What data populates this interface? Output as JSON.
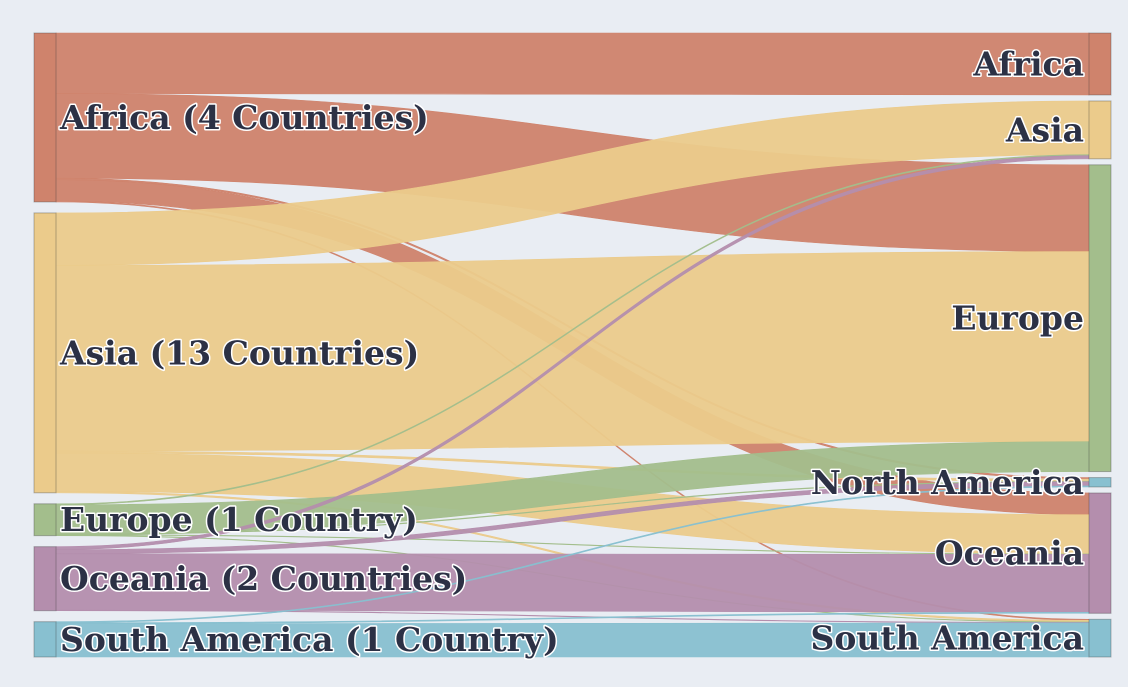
{
  "colors": {
    "background": "#e9edf3",
    "Africa": "#cf836c",
    "Asia": "#ebcb8b",
    "Europe": "#a3be8c",
    "Oceania": "#b48ead",
    "South America": "#88c0d0",
    "North America": "#88c0d0",
    "label_text": "#2c3145"
  },
  "chart_data": {
    "type": "sankey",
    "title": "",
    "sources": [
      {
        "id": "Africa",
        "label": "Africa (4 Countries)"
      },
      {
        "id": "Asia",
        "label": "Asia (13 Countries)"
      },
      {
        "id": "Europe",
        "label": "Europe (1 Country)"
      },
      {
        "id": "Oceania",
        "label": "Oceania (2 Countries)"
      },
      {
        "id": "South America",
        "label": "South America (1 Country)"
      }
    ],
    "targets": [
      {
        "id": "Africa",
        "label": "Africa"
      },
      {
        "id": "Asia",
        "label": "Asia"
      },
      {
        "id": "Europe",
        "label": "Europe"
      },
      {
        "id": "North America",
        "label": "North America"
      },
      {
        "id": "Oceania",
        "label": "Oceania"
      },
      {
        "id": "South America",
        "label": "South America"
      }
    ],
    "links": [
      {
        "source": "Africa",
        "target": "Africa",
        "value": 60
      },
      {
        "source": "Africa",
        "target": "Europe",
        "value": 84
      },
      {
        "source": "Africa",
        "target": "North America",
        "value": 1.5
      },
      {
        "source": "Africa",
        "target": "Oceania",
        "value": 21
      },
      {
        "source": "Africa",
        "target": "South America",
        "value": 1
      },
      {
        "source": "Asia",
        "target": "Asia",
        "value": 52
      },
      {
        "source": "Asia",
        "target": "Europe",
        "value": 184
      },
      {
        "source": "Asia",
        "target": "North America",
        "value": 2
      },
      {
        "source": "Asia",
        "target": "Oceania",
        "value": 38
      },
      {
        "source": "Asia",
        "target": "South America",
        "value": 1.5
      },
      {
        "source": "Europe",
        "target": "Asia",
        "value": 1
      },
      {
        "source": "Europe",
        "target": "Europe",
        "value": 29
      },
      {
        "source": "Europe",
        "target": "North America",
        "value": 0.6
      },
      {
        "source": "Europe",
        "target": "Oceania",
        "value": 0.5
      },
      {
        "source": "Europe",
        "target": "South America",
        "value": 0.5
      },
      {
        "source": "Oceania",
        "target": "Asia",
        "value": 3
      },
      {
        "source": "Oceania",
        "target": "North America",
        "value": 4
      },
      {
        "source": "Oceania",
        "target": "Oceania",
        "value": 56
      },
      {
        "source": "Oceania",
        "target": "South America",
        "value": 0.5
      },
      {
        "source": "South America",
        "target": "North America",
        "value": 1
      },
      {
        "source": "South America",
        "target": "Oceania",
        "value": 1
      },
      {
        "source": "South America",
        "target": "South America",
        "value": 33
      }
    ]
  }
}
